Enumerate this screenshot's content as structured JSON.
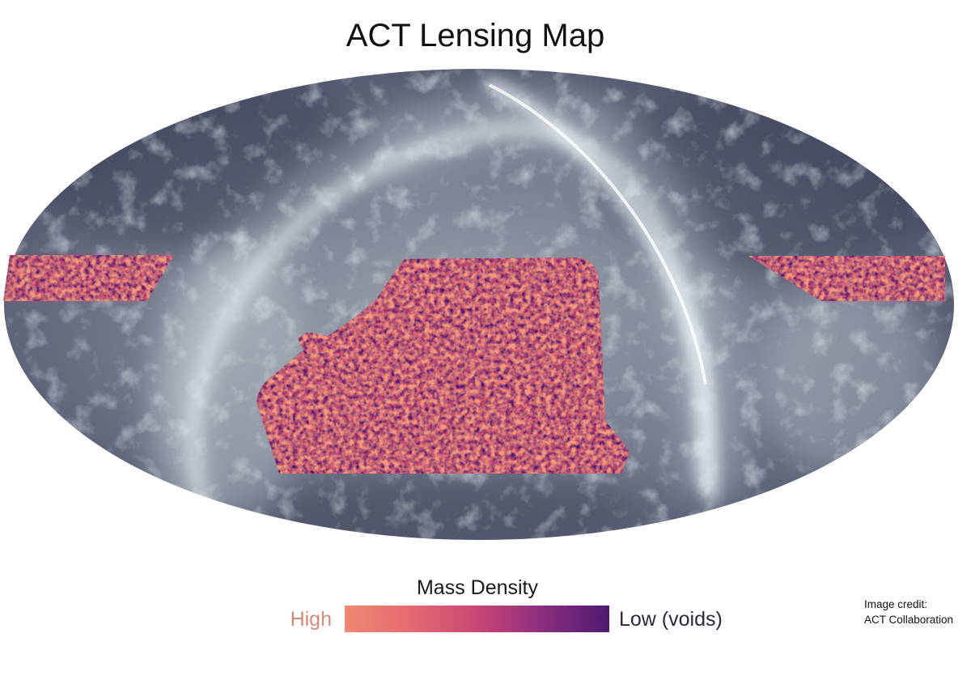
{
  "title": "ACT Lensing Map",
  "legend": {
    "title": "Mass Density",
    "high_label": "High",
    "low_label": "Low (voids)",
    "gradient_colors": [
      "#f08872",
      "#e36a72",
      "#c94774",
      "#8a2e7e",
      "#4d1a70"
    ]
  },
  "credit": {
    "line1": "Image credit:",
    "line2": "ACT Collaboration"
  },
  "colors": {
    "sky_dark": "#4a4c66",
    "sky_mid": "#8e9aa6",
    "dust_bright": "#e8f2f2",
    "lensing_high": "#f08872",
    "lensing_low": "#4d1a70"
  }
}
